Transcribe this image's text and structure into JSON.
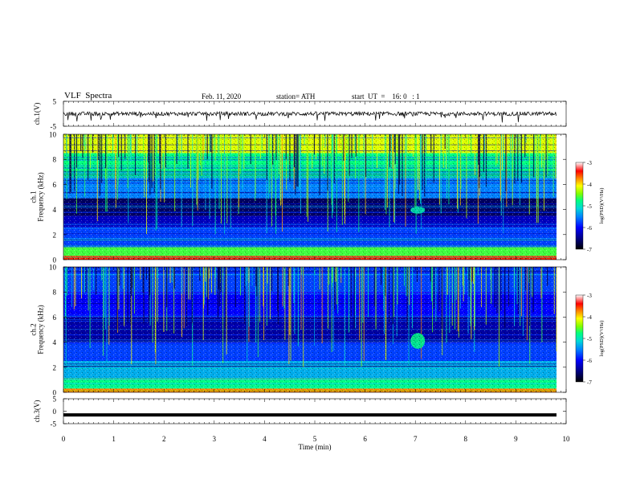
{
  "header": {
    "title": "VLF  Spectra",
    "date": "Feb. 11, 2020",
    "station": "station= ATH",
    "start": "start  UT  =    16: 0   : 1"
  },
  "chart_data": [
    {
      "type": "line",
      "panel": "ch1-waveform",
      "ylabel": "ch.1(V)",
      "ylim": [
        -5,
        5
      ],
      "yticks": [
        5,
        -5
      ],
      "xlim": [
        0,
        10
      ],
      "series": [
        {
          "color": "#000000",
          "baseline": 0,
          "noise_amplitude": 1,
          "spikes": "frequent short spikes to about -1"
        }
      ]
    },
    {
      "type": "heatmap",
      "panel": "ch1-spectrogram",
      "ylabel": "ch.1\nFrequency  (kHz)",
      "ylim": [
        0,
        10
      ],
      "yticks": [
        0,
        2,
        4,
        6,
        8,
        10
      ],
      "xlim": [
        0,
        9.8
      ],
      "value": "log(PSD) (V^2/Hz)",
      "bands": [
        {
          "f_min": 0,
          "f_max": 0.3,
          "level": -3.5
        },
        {
          "f_min": 0.3,
          "f_max": 1.0,
          "level": -4.8
        },
        {
          "f_min": 1.0,
          "f_max": 2.6,
          "level": -6.0
        },
        {
          "f_min": 2.6,
          "f_max": 3.5,
          "level": -6.4
        },
        {
          "f_min": 3.5,
          "f_max": 4.9,
          "level": -6.7
        },
        {
          "f_min": 4.9,
          "f_max": 6.5,
          "level": -5.8
        },
        {
          "f_min": 6.5,
          "f_max": 8.5,
          "level": -5.0
        },
        {
          "f_min": 8.5,
          "f_max": 10,
          "level": -4.3
        }
      ],
      "events": [
        {
          "t": 7.0,
          "f_min": 3.8,
          "f_max": 4.1,
          "level": -5.2
        }
      ]
    },
    {
      "type": "heatmap",
      "panel": "ch2-spectrogram",
      "ylabel": "ch.2\nFrequency  (kHz)",
      "ylim": [
        0,
        10
      ],
      "yticks": [
        0,
        2,
        4,
        6,
        8,
        10
      ],
      "xlim": [
        0,
        9.8
      ],
      "value": "log(PSD) (V^2/Hz)",
      "bands": [
        {
          "f_min": 0,
          "f_max": 0.3,
          "level": -3.8
        },
        {
          "f_min": 0.3,
          "f_max": 1.0,
          "level": -5.0
        },
        {
          "f_min": 1.0,
          "f_max": 2.5,
          "level": -5.6
        },
        {
          "f_min": 2.5,
          "f_max": 4.0,
          "level": -6.0
        },
        {
          "f_min": 4.0,
          "f_max": 6.0,
          "level": -6.5
        },
        {
          "f_min": 6.0,
          "f_max": 8.0,
          "level": -6.2
        },
        {
          "f_min": 8.0,
          "f_max": 10,
          "level": -6.0
        }
      ],
      "events": [
        {
          "t": 7.0,
          "f_min": 3.6,
          "f_max": 4.6,
          "level": -5.0
        }
      ]
    },
    {
      "type": "line",
      "panel": "ch3-waveform",
      "ylabel": "ch.3(V)",
      "ylim": [
        -5,
        5
      ],
      "yticks": [
        5,
        0,
        -5
      ],
      "xlim": [
        0,
        10
      ],
      "series": [
        {
          "color": "#000000",
          "constant": -1.5
        }
      ]
    }
  ],
  "xaxis": {
    "label": "Time  (min)",
    "ticks": [
      0,
      1,
      2,
      3,
      4,
      5,
      6,
      7,
      8,
      9,
      10
    ]
  },
  "colorbars": [
    {
      "label": "log(PSD)(V²/Hz)",
      "ticks": [
        -3,
        -4,
        -5,
        -6,
        -7
      ],
      "range": [
        -7,
        -3
      ]
    },
    {
      "label": "log(PSD)(V²/Hz)",
      "ticks": [
        -3,
        -4,
        -5,
        -6,
        -7
      ],
      "range": [
        -7,
        -3
      ]
    }
  ],
  "colors": {
    "colormap": [
      "#000000",
      "#000080",
      "#0000ff",
      "#0080ff",
      "#00d8d8",
      "#00ff80",
      "#80ff00",
      "#ffff00",
      "#ff8000",
      "#ff0000",
      "#ffffff"
    ]
  }
}
